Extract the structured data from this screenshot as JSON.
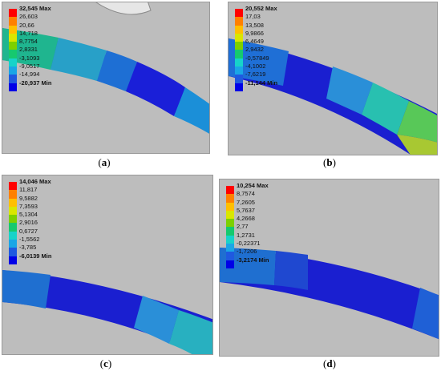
{
  "panels": [
    {
      "id": "a",
      "caption": "a",
      "max_label": "32,545 Max",
      "min_label": "-20,937 Min",
      "levels": [
        "26,603",
        "20,66",
        "14,718",
        "8,7754",
        "2,8331",
        "-3,1093",
        "-9,0517",
        "-14,994"
      ]
    },
    {
      "id": "b",
      "caption": "b",
      "max_label": "20,552 Max",
      "min_label": "-11,144 Min",
      "levels": [
        "17,03",
        "13,508",
        "9,9866",
        "6,4649",
        "2,9432",
        "-0,57849",
        "-4,1002",
        "-7,6219"
      ]
    },
    {
      "id": "c",
      "caption": "c",
      "max_label": "14,046 Max",
      "min_label": "-6,0139 Min",
      "levels": [
        "11,817",
        "9,5882",
        "7,3593",
        "5,1304",
        "2,9016",
        "0,6727",
        "-1,5562",
        "-3,785"
      ]
    },
    {
      "id": "d",
      "caption": "d",
      "max_label": "10,254 Max",
      "min_label": "-3,2174 Min",
      "levels": [
        "8,7574",
        "7,2605",
        "5,7637",
        "4,2668",
        "2,77",
        "1,2731",
        "-0,22371",
        "-1,7206"
      ]
    }
  ],
  "legend_colors": [
    "#ff0000",
    "#ff8000",
    "#ffbf00",
    "#d9e600",
    "#7dd000",
    "#16c96e",
    "#17d3c9",
    "#1aa6e6",
    "#1f59e0",
    "#0000e6"
  ]
}
